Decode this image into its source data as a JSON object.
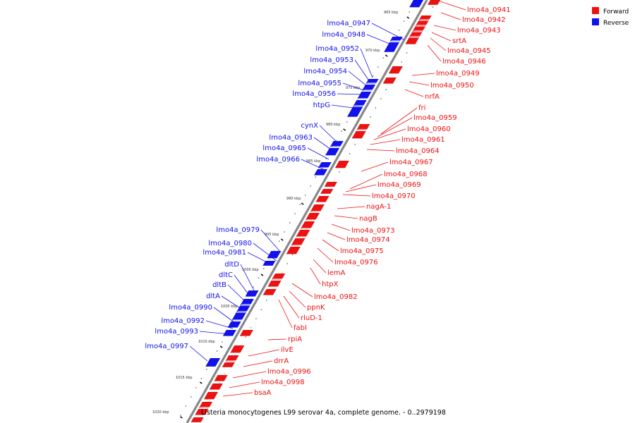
{
  "caption": "Listeria monocytogenes L99 serovar 4a, complete genome. - 0..2979198",
  "legend": [
    {
      "label": "Forward",
      "color": "#ee1111"
    },
    {
      "label": "Reverse",
      "color": "#1111ee"
    }
  ],
  "colors": {
    "forward": "#ee1111",
    "reverse": "#1111ee",
    "backbone": "#888888"
  },
  "axis_labels": [
    "965 kbp",
    "970 kbp",
    "975 kbp",
    "980 kbp",
    "985 kbp",
    "990 kbp",
    "995 kbp",
    "1000 kbp",
    "1005 kbp",
    "1010 kbp",
    "1015 kbp",
    "1020 kbp"
  ],
  "forward_genes": [
    "lmo4a_0941",
    "lmo4a_0942",
    "lmo4a_0943",
    "srtA",
    "lmo4a_0945",
    "lmo4a_0946",
    "lmo4a_0949",
    "lmo4a_0950",
    "nrfA",
    "fri",
    "lmo4a_0959",
    "lmo4a_0960",
    "lmo4a_0961",
    "lmo4a_0964",
    "lmo4a_0967",
    "lmo4a_0968",
    "lmo4a_0969",
    "lmo4a_0970",
    "nagA-1",
    "nagB",
    "lmo4a_0973",
    "lmo4a_0974",
    "lmo4a_0975",
    "lmo4a_0976",
    "lemA",
    "htpX",
    "lmo4a_0982",
    "ppnK",
    "rluD-1",
    "fabI",
    "rpiA",
    "ilvE",
    "drrA",
    "lmo4a_0996",
    "lmo4a_0998",
    "bsaA"
  ],
  "reverse_genes": [
    "lmo4a_0947",
    "lmo4a_0948",
    "lmo4a_0952",
    "lmo4a_0953",
    "lmo4a_0954",
    "lmo4a_0955",
    "lmo4a_0956",
    "htpG",
    "cynX",
    "lmo4a_0963",
    "lmo4a_0965",
    "lmo4a_0966",
    "lmo4a_0979",
    "lmo4a_0980",
    "lmo4a_0981",
    "dltD",
    "dltC",
    "dltB",
    "dltA",
    "lmo4a_0990",
    "lmo4a_0992",
    "lmo4a_0993",
    "lmo4a_0997"
  ]
}
